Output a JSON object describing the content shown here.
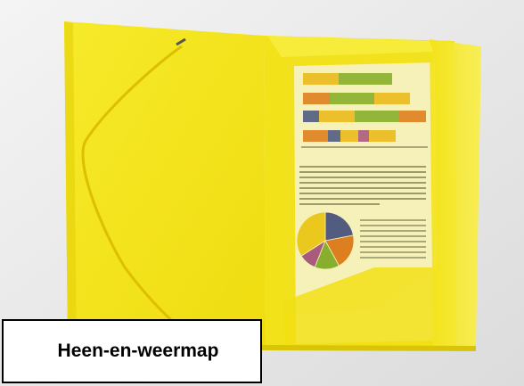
{
  "caption": {
    "text": "Heen-en-weermap"
  },
  "photo": {
    "subject": "yellow-folder-with-elastic",
    "colors": {
      "background": "#ececec",
      "folder": "#f5e615",
      "folder_dark": "#e2d10a",
      "elastic": "#e0c400"
    },
    "document": {
      "bar_colors": [
        "#d86a1c",
        "#2f3f93",
        "#6fa32e",
        "#9a3d8f",
        "#e8b21a"
      ],
      "pie_colors": [
        "#2f3f93",
        "#d86a1c",
        "#6fa32e",
        "#9a3d8f",
        "#e8c21a"
      ]
    }
  }
}
